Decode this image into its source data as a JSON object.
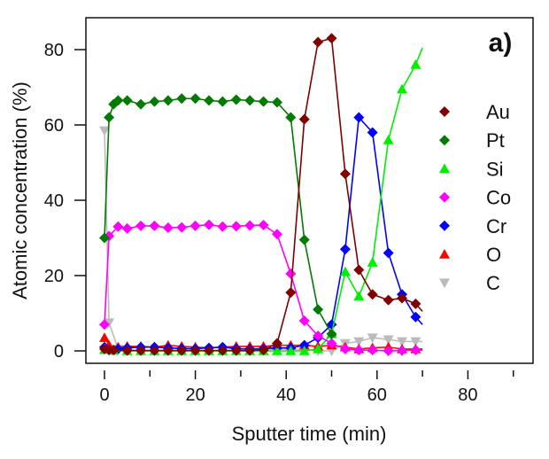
{
  "chart_data": {
    "type": "line",
    "panel_label": "a)",
    "xlabel": "Sputter time (min)",
    "ylabel": "Atomic concentration (%)",
    "xlim": [
      -3,
      95
    ],
    "ylim": [
      -3,
      88
    ],
    "x_ticks": [
      0,
      20,
      40,
      60,
      80
    ],
    "x_tick_labels": [
      "0",
      "20",
      "40",
      "60",
      "80"
    ],
    "x_minor_ticks": [
      10,
      30,
      50,
      70,
      90
    ],
    "y_ticks": [
      0,
      20,
      40,
      60,
      80
    ],
    "y_tick_labels": [
      "0",
      "20",
      "40",
      "60",
      "80"
    ],
    "grid": false,
    "legend_position": "right",
    "series": [
      {
        "name": "Au",
        "color": "#800000",
        "marker": "diamond",
        "x": [
          0,
          1,
          2,
          5,
          8,
          11,
          14,
          17,
          20,
          23,
          26,
          29,
          32,
          35,
          38,
          41,
          44,
          47,
          50,
          53,
          56,
          59,
          62.5,
          65.5,
          68.5
        ],
        "y": [
          0.5,
          0.3,
          0.2,
          0.1,
          0.1,
          0.1,
          0.1,
          0.1,
          0.1,
          0.1,
          0.1,
          0.1,
          0.1,
          0.2,
          2,
          15.5,
          61.5,
          82,
          83,
          47,
          21.5,
          15,
          13.5,
          14,
          12.5
        ],
        "line_end": [
          70,
          10.5
        ]
      },
      {
        "name": "Pt",
        "color": "#007a00",
        "marker": "diamond",
        "x": [
          0,
          1,
          2,
          3,
          5,
          8,
          11,
          14,
          17,
          20,
          23,
          26,
          29,
          32,
          35,
          38,
          41,
          44,
          47,
          50
        ],
        "y": [
          30,
          62,
          65.5,
          66.5,
          66.5,
          65.5,
          66.2,
          66.5,
          67,
          67,
          66.5,
          66.2,
          66.7,
          66.5,
          66.2,
          66,
          62,
          29.5,
          11,
          4.5
        ],
        "line_end": [
          51,
          4
        ]
      },
      {
        "name": "Si",
        "color": "#00ee00",
        "marker": "triangle-up",
        "x": [
          0,
          2,
          5,
          8,
          11,
          14,
          17,
          20,
          23,
          26,
          29,
          32,
          35,
          38,
          41,
          44,
          47,
          50,
          53,
          56,
          59,
          62.5,
          65.5,
          68.5
        ],
        "y": [
          0.3,
          0.1,
          0,
          0,
          0,
          0,
          0,
          0,
          0,
          0,
          0,
          0,
          0,
          0,
          0,
          0,
          0.5,
          4.5,
          21,
          14.5,
          23.5,
          56,
          69.5,
          76
        ],
        "line_end": [
          70,
          80.5
        ]
      },
      {
        "name": "Co",
        "color": "#ff00ff",
        "marker": "diamond",
        "x": [
          0,
          1,
          3,
          5,
          8,
          11,
          14,
          17,
          20,
          23,
          26,
          29,
          32,
          35,
          38,
          41,
          44,
          47,
          50,
          53,
          56,
          59,
          62.5,
          65.5,
          68.5
        ],
        "y": [
          7,
          30.5,
          33,
          32.5,
          33.2,
          33.2,
          32.7,
          32.8,
          33.2,
          33.5,
          33,
          33.1,
          33.3,
          33.4,
          31,
          20.5,
          8,
          4,
          2,
          0.5,
          0.2,
          0.2,
          0,
          0.1,
          0.2
        ],
        "line_end": [
          70,
          0.2
        ]
      },
      {
        "name": "Cr",
        "color": "#0000ff",
        "marker": "diamond",
        "x": [
          0,
          1,
          3,
          5,
          8,
          11,
          14,
          17,
          20,
          23,
          26,
          29,
          32,
          35,
          38,
          41,
          44,
          47,
          50,
          53,
          56,
          59,
          62.5,
          65.5,
          68.5
        ],
        "y": [
          1,
          0.2,
          0.5,
          0.8,
          1,
          1,
          0.8,
          0.6,
          0.6,
          0.8,
          1,
          0.6,
          0.5,
          0.6,
          0.8,
          0.8,
          1.5,
          3.5,
          7,
          27,
          62,
          58,
          26,
          15,
          9
        ],
        "line_end": [
          70,
          7
        ]
      },
      {
        "name": "O",
        "color": "#ff0000",
        "marker": "triangle-up",
        "x": [
          0,
          1,
          3,
          5,
          8,
          11,
          14,
          17,
          20,
          23,
          26,
          29,
          32,
          35,
          38,
          41,
          44,
          47,
          50,
          53,
          56,
          59,
          62.5,
          65.5,
          68.5
        ],
        "y": [
          3.5,
          1.5,
          1,
          1.2,
          1.2,
          1,
          1.5,
          1.2,
          1,
          0.8,
          1,
          1.2,
          1.2,
          1.2,
          1.5,
          1.5,
          1.5,
          1.2,
          1.5,
          1,
          0.5,
          0.8,
          1,
          0.5,
          0.5
        ],
        "line_end": [
          70,
          0.5
        ]
      },
      {
        "name": "C",
        "color": "#bbbbbb",
        "marker": "triangle-down",
        "x": [
          0,
          1,
          3,
          5,
          8,
          11,
          14,
          17,
          20,
          23,
          26,
          29,
          32,
          35,
          38,
          41,
          44,
          47,
          50,
          53,
          56,
          59,
          62.5,
          65.5,
          68.5
        ],
        "y": [
          58.5,
          7.5,
          0.5,
          0.3,
          0,
          0,
          0,
          0,
          0,
          0,
          0,
          0,
          0,
          0.3,
          0.5,
          0.5,
          0.3,
          0,
          0,
          2,
          2.5,
          3.5,
          3,
          2.5,
          2.5
        ],
        "line_end": [
          70,
          2.5
        ]
      }
    ]
  }
}
